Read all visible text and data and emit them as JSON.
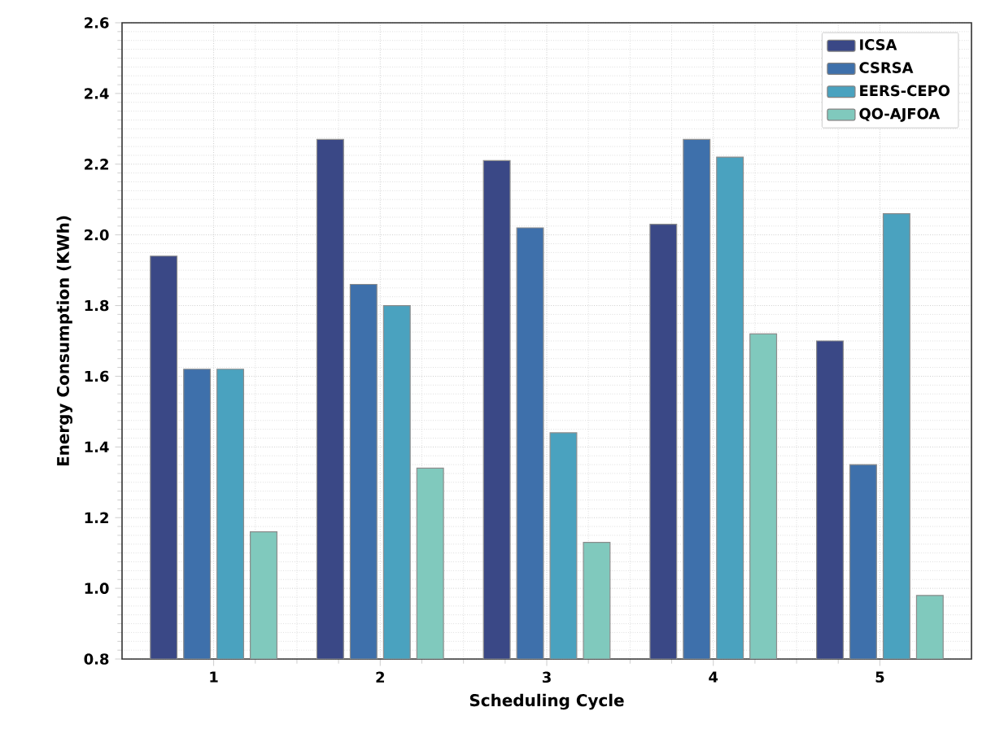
{
  "chart_data": {
    "type": "bar",
    "xlabel": "Scheduling Cycle",
    "ylabel": "Energy Consumption (KWh)",
    "categories": [
      "1",
      "2",
      "3",
      "4",
      "5"
    ],
    "series": [
      {
        "name": "ICSA",
        "color": "#3a4886",
        "values": [
          1.94,
          2.27,
          2.21,
          2.03,
          1.7
        ]
      },
      {
        "name": "CSRSA",
        "color": "#3e70ab",
        "values": [
          1.62,
          1.86,
          2.02,
          2.27,
          1.35
        ]
      },
      {
        "name": "EERS-CEPO",
        "color": "#4aa2bf",
        "values": [
          1.62,
          1.8,
          1.44,
          2.22,
          2.06
        ]
      },
      {
        "name": "QO-AJFOA",
        "color": "#80c9bd",
        "values": [
          1.16,
          1.34,
          1.13,
          1.72,
          0.98
        ]
      }
    ],
    "ylim": [
      0.8,
      2.6
    ],
    "yticks": [
      0.8,
      {
        "value": 1.0,
        "label": "1.0"
      },
      1.2,
      1.4,
      1.6,
      1.8,
      {
        "value": 2.0,
        "label": "2.0"
      },
      2.2,
      2.4,
      2.6
    ],
    "grid": true,
    "legend": "top right"
  }
}
